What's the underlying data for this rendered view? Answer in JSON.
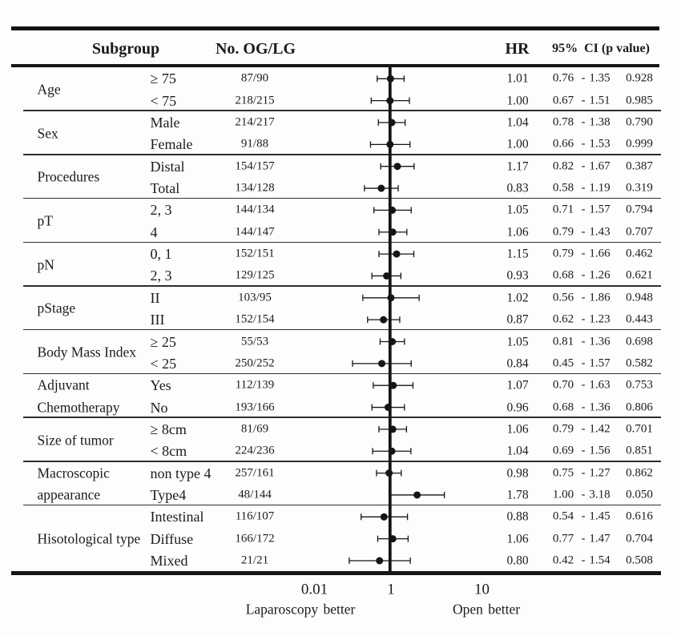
{
  "chart_data": {
    "type": "scatter",
    "subtype": "forest-plot",
    "title": "",
    "x_scale": "log",
    "x_reference_line": 1,
    "x_ticks": [
      "0.01",
      "1",
      "10"
    ],
    "x_axis_annotations": {
      "left": "Laparoscopy better",
      "right": "Open better"
    },
    "columns": [
      "Subgroup",
      "No. OG/LG",
      "HR",
      "95%  CI (p value)"
    ],
    "ci_separator": "-",
    "groups": [
      {
        "label": "Age",
        "label_lines": [
          "Age"
        ],
        "rows": [
          {
            "category": "≥ 75",
            "n": "87/90",
            "hr": "1.01",
            "ci_low": "0.76",
            "ci_high": "1.35",
            "p": "0.928"
          },
          {
            "category": "< 75",
            "n": "218/215",
            "hr": "1.00",
            "ci_low": "0.67",
            "ci_high": "1.51",
            "p": "0.985"
          }
        ]
      },
      {
        "label": "Sex",
        "label_lines": [
          "Sex"
        ],
        "rows": [
          {
            "category": "Male",
            "n": "214/217",
            "hr": "1.04",
            "ci_low": "0.78",
            "ci_high": "1.38",
            "p": "0.790"
          },
          {
            "category": "Female",
            "n": "91/88",
            "hr": "1.00",
            "ci_low": "0.66",
            "ci_high": "1.53",
            "p": "0.999"
          }
        ]
      },
      {
        "label": "Procedures",
        "label_lines": [
          "Procedures"
        ],
        "rows": [
          {
            "category": "Distal",
            "n": "154/157",
            "hr": "1.17",
            "ci_low": "0.82",
            "ci_high": "1.67",
            "p": "0.387"
          },
          {
            "category": "Total",
            "n": "134/128",
            "hr": "0.83",
            "ci_low": "0.58",
            "ci_high": "1.19",
            "p": "0.319"
          }
        ]
      },
      {
        "label": "pT",
        "label_lines": [
          "pT"
        ],
        "rows": [
          {
            "category": "2, 3",
            "n": "144/134",
            "hr": "1.05",
            "ci_low": "0.71",
            "ci_high": "1.57",
            "p": "0.794"
          },
          {
            "category": "4",
            "n": "144/147",
            "hr": "1.06",
            "ci_low": "0.79",
            "ci_high": "1.43",
            "p": "0.707"
          }
        ]
      },
      {
        "label": "pN",
        "label_lines": [
          "pN"
        ],
        "rows": [
          {
            "category": "0, 1",
            "n": "152/151",
            "hr": "1.15",
            "ci_low": "0.79",
            "ci_high": "1.66",
            "p": "0.462"
          },
          {
            "category": "2, 3",
            "n": "129/125",
            "hr": "0.93",
            "ci_low": "0.68",
            "ci_high": "1.26",
            "p": "0.621"
          }
        ]
      },
      {
        "label": "pStage",
        "label_lines": [
          "pStage"
        ],
        "rows": [
          {
            "category": "II",
            "n": "103/95",
            "hr": "1.02",
            "ci_low": "0.56",
            "ci_high": "1.86",
            "p": "0.948"
          },
          {
            "category": "III",
            "n": "152/154",
            "hr": "0.87",
            "ci_low": "0.62",
            "ci_high": "1.23",
            "p": "0.443"
          }
        ]
      },
      {
        "label": "Body Mass Index",
        "label_lines": [
          "Body Mass Index"
        ],
        "rows": [
          {
            "category": "≥ 25",
            "n": "55/53",
            "hr": "1.05",
            "ci_low": "0.81",
            "ci_high": "1.36",
            "p": "0.698"
          },
          {
            "category": "< 25",
            "n": "250/252",
            "hr": "0.84",
            "ci_low": "0.45",
            "ci_high": "1.57",
            "p": "0.582"
          }
        ]
      },
      {
        "label": "Adjuvant Chemotherapy",
        "label_lines": [
          "Adjuvant",
          "Chemotherapy"
        ],
        "rows": [
          {
            "category": "Yes",
            "n": "112/139",
            "hr": "1.07",
            "ci_low": "0.70",
            "ci_high": "1.63",
            "p": "0.753"
          },
          {
            "category": "No",
            "n": "193/166",
            "hr": "0.96",
            "ci_low": "0.68",
            "ci_high": "1.36",
            "p": "0.806"
          }
        ]
      },
      {
        "label": "Size of tumor",
        "label_lines": [
          "Size of tumor"
        ],
        "rows": [
          {
            "category": "≥ 8cm",
            "n": "81/69",
            "hr": "1.06",
            "ci_low": "0.79",
            "ci_high": "1.42",
            "p": "0.701"
          },
          {
            "category": "< 8cm",
            "n": "224/236",
            "hr": "1.04",
            "ci_low": "0.69",
            "ci_high": "1.56",
            "p": "0.851"
          }
        ]
      },
      {
        "label": "Macroscopic appearance",
        "label_lines": [
          "Macroscopic",
          "appearance"
        ],
        "rows": [
          {
            "category": "non type 4",
            "n": "257/161",
            "hr": "0.98",
            "ci_low": "0.75",
            "ci_high": "1.27",
            "p": "0.862"
          },
          {
            "category": "Type4",
            "n": "48/144",
            "hr": "1.78",
            "ci_low": "1.00",
            "ci_high": "3.18",
            "p": "0.050"
          }
        ]
      },
      {
        "label": "Hisotological type",
        "label_lines": [
          "Hisotological type"
        ],
        "rows": [
          {
            "category": "Intestinal",
            "n": "116/107",
            "hr": "0.88",
            "ci_low": "0.54",
            "ci_high": "1.45",
            "p": "0.616"
          },
          {
            "category": "Diffuse",
            "n": "166/172",
            "hr": "1.06",
            "ci_low": "0.77",
            "ci_high": "1.47",
            "p": "0.704"
          },
          {
            "category": "Mixed",
            "n": "21/21",
            "hr": "0.80",
            "ci_low": "0.42",
            "ci_high": "1.54",
            "p": "0.508"
          }
        ]
      }
    ]
  }
}
